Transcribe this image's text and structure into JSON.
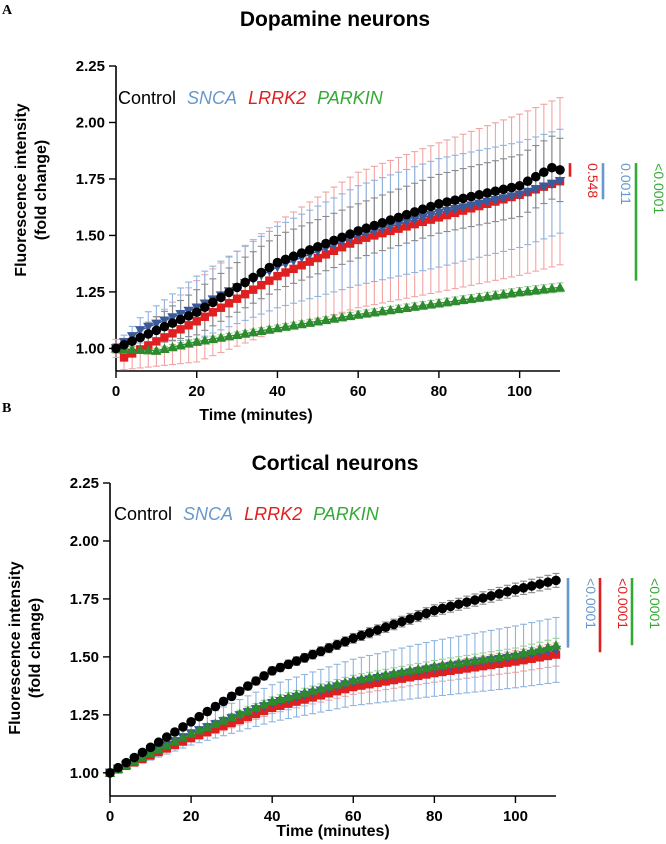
{
  "panel_labels": [
    "A",
    "B"
  ],
  "series_styles": [
    {
      "key": "control",
      "name": "Control",
      "color": "#000000",
      "errcolor": "#8a8a8a",
      "marker": "circle",
      "italic": false
    },
    {
      "key": "snca",
      "name": "SNCA",
      "color": "#3a5a9a",
      "errcolor": "#8fb4df",
      "marker": "triangle-down",
      "italic": true
    },
    {
      "key": "lrrk2",
      "name": "LRRK2",
      "color": "#e02020",
      "errcolor": "#f2a3a3",
      "marker": "square",
      "italic": true
    },
    {
      "key": "parkin",
      "name": "PARKIN",
      "color": "#2d8a2d",
      "errcolor": "#9ad09a",
      "marker": "triangle-up",
      "italic": true
    }
  ],
  "legend_colors": {
    "control": "#000000",
    "snca": "#6699cc",
    "lrrk2": "#e02020",
    "parkin": "#33aa33"
  },
  "chart_data": [
    {
      "type": "line",
      "title": "Dopamine neurons",
      "xlabel": "Time (minutes)",
      "ylabel_line1": "Fluorescence intensity",
      "ylabel_line2": "(fold change)",
      "xlim": [
        0,
        110
      ],
      "ylim": [
        0.9,
        2.25
      ],
      "x_ticks": [
        0,
        20,
        40,
        60,
        80,
        100
      ],
      "x_tick_labels": [
        "0",
        "20",
        "40",
        "60",
        "80",
        "100"
      ],
      "y_ticks": [
        1.0,
        1.25,
        1.5,
        1.75,
        2.0,
        2.25
      ],
      "y_tick_labels": [
        "1.00",
        "1.25",
        "1.50",
        "1.75",
        "2.00",
        "2.25"
      ],
      "x_start": 0,
      "x_step": 2,
      "n_points": 56,
      "series": [
        {
          "key": "control",
          "name": "Control",
          "anchors": [
            [
              0,
              1.0
            ],
            [
              20,
              1.16
            ],
            [
              40,
              1.38
            ],
            [
              60,
              1.52
            ],
            [
              80,
              1.64
            ],
            [
              100,
              1.72
            ],
            [
              108,
              1.8
            ],
            [
              110,
              1.79
            ]
          ],
          "err_anchors": [
            [
              0,
              0.02
            ],
            [
              20,
              0.1
            ],
            [
              40,
              0.12
            ],
            [
              60,
              0.12
            ],
            [
              80,
              0.13
            ],
            [
              110,
              0.14
            ]
          ]
        },
        {
          "key": "snca",
          "name": "SNCA",
          "anchors": [
            [
              0,
              1.0
            ],
            [
              6,
              1.08
            ],
            [
              20,
              1.18
            ],
            [
              40,
              1.36
            ],
            [
              60,
              1.5
            ],
            [
              80,
              1.6
            ],
            [
              100,
              1.68
            ],
            [
              110,
              1.74
            ]
          ],
          "err_anchors": [
            [
              0,
              0.02
            ],
            [
              20,
              0.14
            ],
            [
              40,
              0.18
            ],
            [
              60,
              0.22
            ],
            [
              80,
              0.24
            ],
            [
              110,
              0.23
            ]
          ]
        },
        {
          "key": "lrrk2",
          "name": "LRRK2",
          "anchors": [
            [
              0,
              1.0
            ],
            [
              2,
              0.96
            ],
            [
              20,
              1.12
            ],
            [
              40,
              1.32
            ],
            [
              60,
              1.48
            ],
            [
              80,
              1.58
            ],
            [
              100,
              1.68
            ],
            [
              110,
              1.74
            ]
          ],
          "err_anchors": [
            [
              0,
              0.04
            ],
            [
              20,
              0.18
            ],
            [
              40,
              0.24
            ],
            [
              60,
              0.3
            ],
            [
              80,
              0.33
            ],
            [
              110,
              0.37
            ]
          ]
        },
        {
          "key": "parkin",
          "name": "PARKIN",
          "anchors": [
            [
              0,
              1.0
            ],
            [
              10,
              0.99
            ],
            [
              20,
              1.03
            ],
            [
              40,
              1.09
            ],
            [
              60,
              1.15
            ],
            [
              80,
              1.2
            ],
            [
              100,
              1.25
            ],
            [
              110,
              1.27
            ]
          ],
          "err_anchors": [
            [
              0,
              0.01
            ],
            [
              110,
              0.02
            ]
          ]
        }
      ],
      "legend": [
        "Control",
        "SNCA",
        "LRRK2",
        "PARKIN"
      ],
      "pvalues": [
        {
          "label": "0.548",
          "key": "lrrk2",
          "y_top": 1.82,
          "y_bottom": 1.76,
          "dx": 0
        },
        {
          "label": "0.0011",
          "key": "snca",
          "y_top": 1.82,
          "y_bottom": 1.66,
          "dx": 33
        },
        {
          "label": "<0.0001",
          "key": "parkin",
          "y_top": 1.82,
          "y_bottom": 1.3,
          "dx": 66
        }
      ]
    },
    {
      "type": "line",
      "title": "Cortical neurons",
      "xlabel": "Time (minutes)",
      "ylabel_line1": "Fluorescence intensity",
      "ylabel_line2": "(fold change)",
      "xlim": [
        0,
        110
      ],
      "ylim": [
        0.9,
        2.25
      ],
      "x_ticks": [
        0,
        20,
        40,
        60,
        80,
        100
      ],
      "x_tick_labels": [
        "0",
        "20",
        "40",
        "60",
        "80",
        "100"
      ],
      "y_ticks": [
        1.0,
        1.25,
        1.5,
        1.75,
        2.0,
        2.25
      ],
      "y_tick_labels": [
        "1.00",
        "1.25",
        "1.50",
        "1.75",
        "2.00",
        "2.25"
      ],
      "x_start": 0,
      "x_step": 2,
      "n_points": 56,
      "series": [
        {
          "key": "control",
          "name": "Control",
          "anchors": [
            [
              0,
              1.0
            ],
            [
              20,
              1.22
            ],
            [
              40,
              1.44
            ],
            [
              60,
              1.58
            ],
            [
              80,
              1.7
            ],
            [
              100,
              1.79
            ],
            [
              110,
              1.83
            ]
          ],
          "err_anchors": [
            [
              0,
              0.01
            ],
            [
              110,
              0.03
            ]
          ]
        },
        {
          "key": "snca",
          "name": "SNCA",
          "anchors": [
            [
              0,
              1.0
            ],
            [
              20,
              1.17
            ],
            [
              40,
              1.3
            ],
            [
              60,
              1.39
            ],
            [
              80,
              1.45
            ],
            [
              100,
              1.5
            ],
            [
              110,
              1.53
            ]
          ],
          "err_anchors": [
            [
              0,
              0.01
            ],
            [
              20,
              0.05
            ],
            [
              40,
              0.08
            ],
            [
              60,
              0.1
            ],
            [
              80,
              0.12
            ],
            [
              110,
              0.14
            ]
          ]
        },
        {
          "key": "lrrk2",
          "name": "LRRK2",
          "anchors": [
            [
              0,
              1.0
            ],
            [
              20,
              1.15
            ],
            [
              40,
              1.28
            ],
            [
              60,
              1.37
            ],
            [
              80,
              1.43
            ],
            [
              100,
              1.48
            ],
            [
              110,
              1.51
            ]
          ],
          "err_anchors": [
            [
              0,
              0.01
            ],
            [
              110,
              0.05
            ]
          ]
        },
        {
          "key": "parkin",
          "name": "PARKIN",
          "anchors": [
            [
              0,
              1.0
            ],
            [
              20,
              1.17
            ],
            [
              40,
              1.31
            ],
            [
              60,
              1.4
            ],
            [
              80,
              1.46
            ],
            [
              100,
              1.51
            ],
            [
              110,
              1.55
            ]
          ],
          "err_anchors": [
            [
              0,
              0.01
            ],
            [
              110,
              0.03
            ]
          ]
        }
      ],
      "legend": [
        "Control",
        "SNCA",
        "LRRK2",
        "PARKIN"
      ],
      "pvalues": [
        {
          "label": "<0.0001",
          "key": "snca",
          "y_top": 1.84,
          "y_bottom": 1.54,
          "dx": 0
        },
        {
          "label": "<0.0001",
          "key": "lrrk2",
          "y_top": 1.84,
          "y_bottom": 1.52,
          "dx": 32
        },
        {
          "label": "<0.0001",
          "key": "parkin",
          "y_top": 1.84,
          "y_bottom": 1.55,
          "dx": 64
        }
      ]
    }
  ]
}
